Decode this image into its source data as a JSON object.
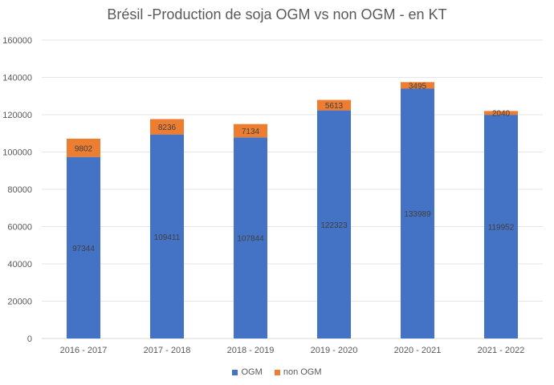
{
  "chart_data": {
    "type": "bar",
    "stacked": true,
    "title": "Brésil -Production de soja OGM vs non OGM - en KT",
    "xlabel": "",
    "ylabel": "",
    "categories": [
      "2016 - 2017",
      "2017 - 2018",
      "2018 - 2019",
      "2019 - 2020",
      "2020 - 2021",
      "2021 - 2022"
    ],
    "series": [
      {
        "name": "OGM",
        "values": [
          97344,
          109411,
          107844,
          122323,
          133989,
          119952
        ],
        "color": "#4472c4"
      },
      {
        "name": "non OGM",
        "values": [
          9802,
          8236,
          7134,
          5613,
          3495,
          2040
        ],
        "color": "#ed7d31"
      }
    ],
    "ylim": [
      0,
      160000
    ],
    "yticks": [
      0,
      20000,
      40000,
      60000,
      80000,
      100000,
      120000,
      140000,
      160000
    ],
    "grid": true,
    "legend_position": "bottom"
  }
}
